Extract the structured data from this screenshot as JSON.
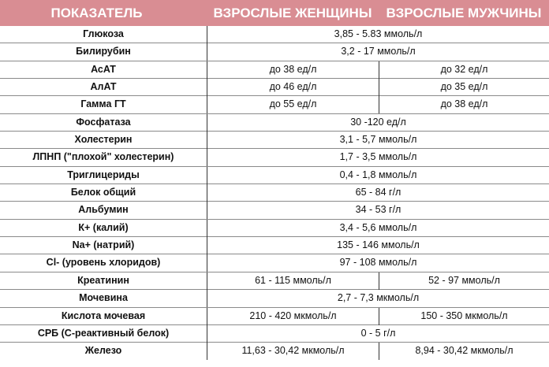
{
  "header": {
    "indicator": "ПОКАЗАТЕЛЬ",
    "women": "ВЗРОСЛЫЕ ЖЕНЩИНЫ",
    "men": "ВЗРОСЛЫЕ МУЖЧИНЫ"
  },
  "colors": {
    "header_bg": "#d98d93",
    "header_text": "#ffffff"
  },
  "rows": [
    {
      "name": "Глюкоза",
      "value": "3,85 - 5.83 ммоль/л"
    },
    {
      "name": "Билирубин",
      "value": "3,2 - 17 ммоль/л"
    },
    {
      "name": "АсАТ",
      "women": "до 38 ед/л",
      "men": "до 32 ед/л"
    },
    {
      "name": "АлАТ",
      "women": "до 46 ед/л",
      "men": "до 35 ед/л"
    },
    {
      "name": "Гамма ГТ",
      "women": "до 55 ед/л",
      "men": "до 38 ед/л"
    },
    {
      "name": "Фосфатаза",
      "value": "30 -120 ед/л"
    },
    {
      "name": "Холестерин",
      "value": "3,1 - 5,7 ммоль/л"
    },
    {
      "name": "ЛПНП (\"плохой\" холестерин)",
      "value": "1,7 - 3,5 ммоль/л"
    },
    {
      "name": "Триглицериды",
      "value": "0,4 - 1,8 ммоль/л"
    },
    {
      "name": "Белок общий",
      "value": "65 - 84 г/л"
    },
    {
      "name": "Альбумин",
      "value": "34 - 53 г/л"
    },
    {
      "name": "К+ (калий)",
      "value": "3,4 - 5,6  ммоль/л"
    },
    {
      "name": "Na+ (натрий)",
      "value": "135 - 146 ммоль/л"
    },
    {
      "name": "Cl- (уровень хлоридов)",
      "value": "97 - 108  ммоль/л"
    },
    {
      "name": "Креатинин",
      "women": "61 - 115 ммоль/л",
      "men": "52 - 97 ммоль/л"
    },
    {
      "name": "Мочевина",
      "value": "2,7 - 7,3 мкмоль/л"
    },
    {
      "name": "Кислота мочевая",
      "women": "210 - 420 мкмоль/л",
      "men": "150 - 350 мкмоль/л"
    },
    {
      "name": "СРБ (С-реактивный белок)",
      "value": "0 - 5 г/л"
    },
    {
      "name": "Железо",
      "women": "11,63 - 30,42 мкмоль/л",
      "men": "8,94 - 30,42 мкмоль/л"
    }
  ]
}
